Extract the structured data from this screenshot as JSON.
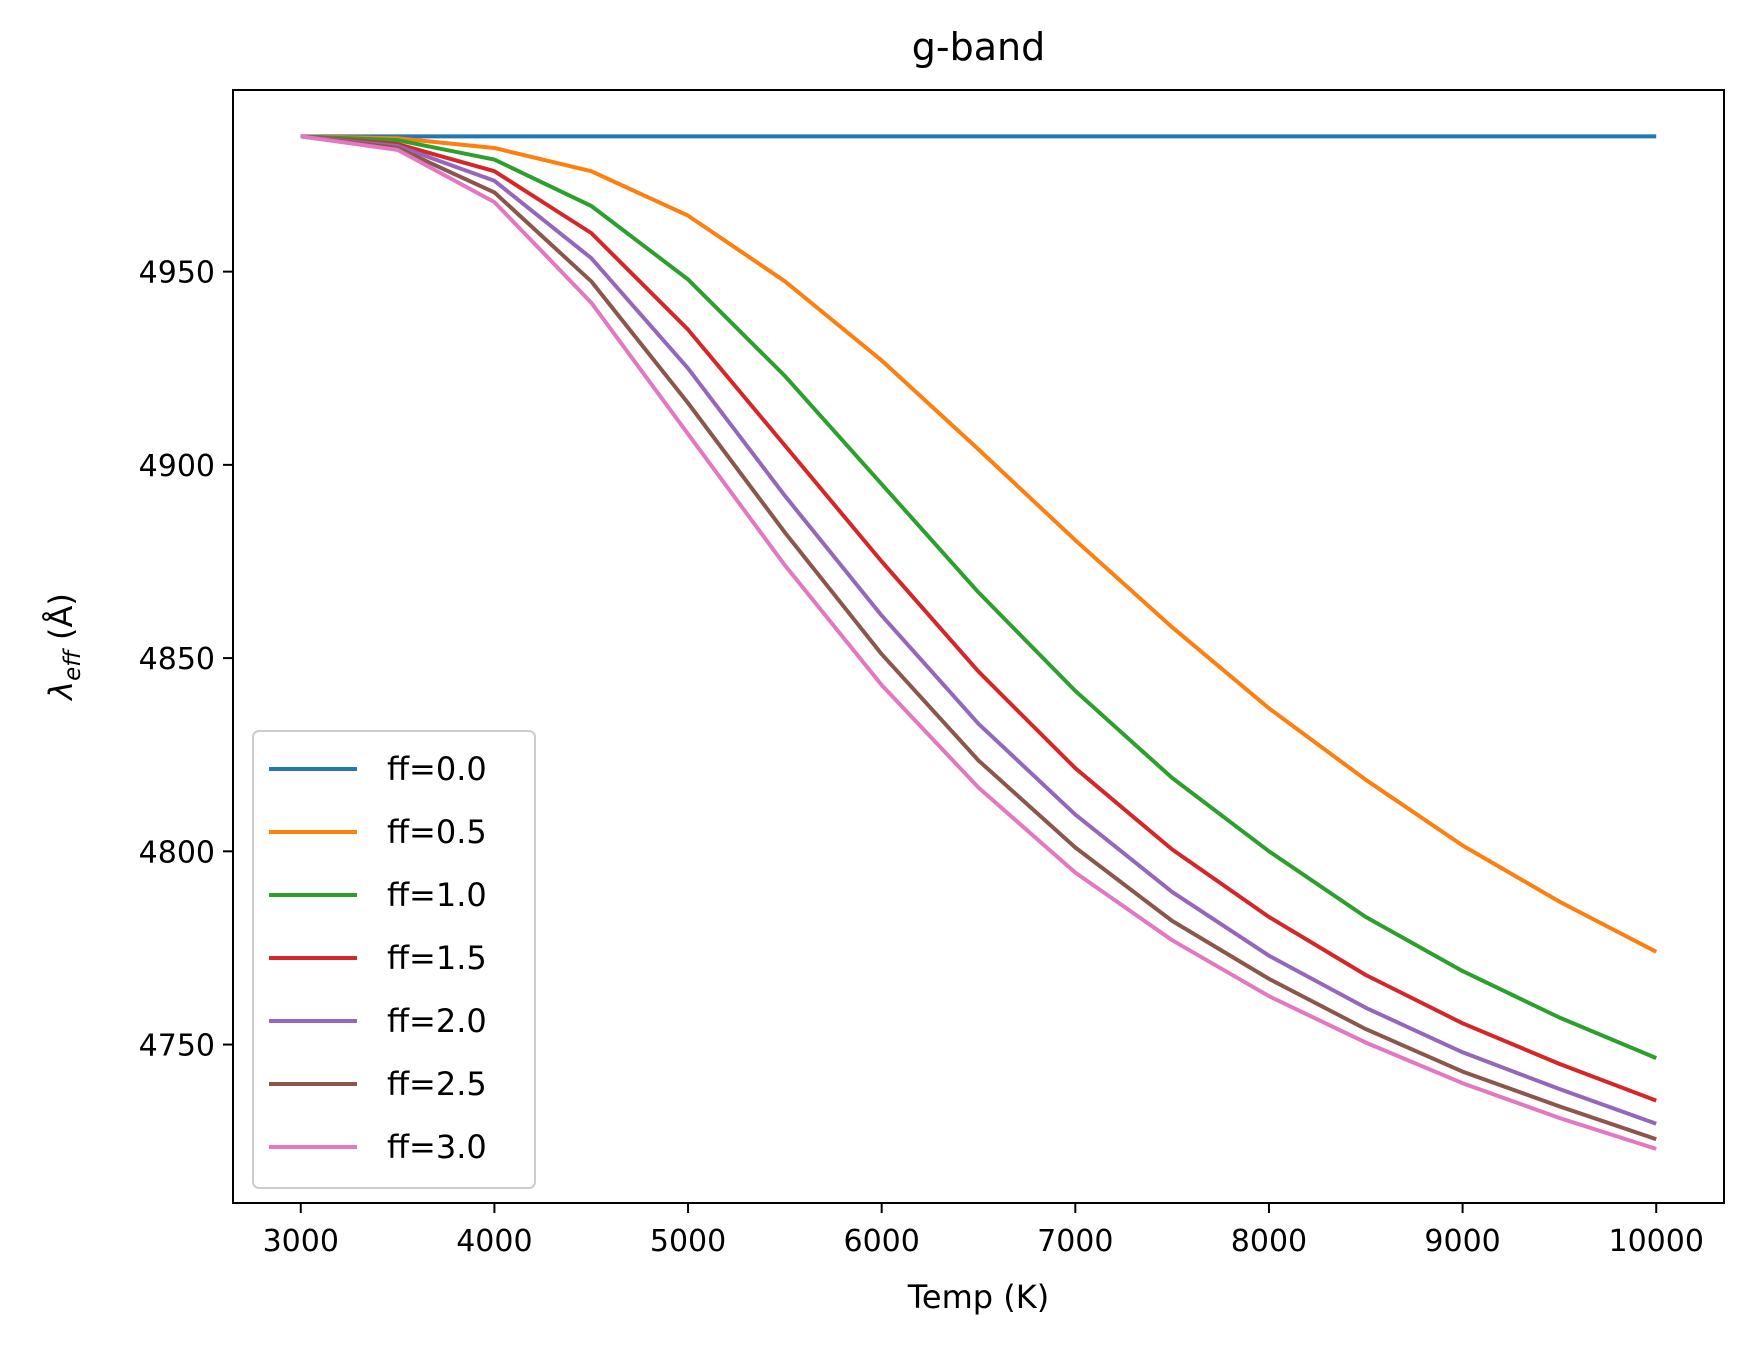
{
  "chart_data": {
    "type": "line",
    "title": "g-band",
    "xlabel": "Temp (K)",
    "ylabel": "λ_eff (Å)",
    "xlim": [
      2650,
      10350
    ],
    "ylim": [
      4709,
      4997
    ],
    "xticks": [
      3000,
      4000,
      5000,
      6000,
      7000,
      8000,
      9000,
      10000
    ],
    "yticks": [
      4750,
      4800,
      4850,
      4900,
      4950
    ],
    "grid": false,
    "legend_position": "lower-left",
    "x": [
      3000,
      3500,
      4000,
      4500,
      5000,
      5500,
      6000,
      6500,
      7000,
      7500,
      8000,
      8500,
      9000,
      9500,
      10000
    ],
    "series": [
      {
        "name": "ff=0.0",
        "color": "#1f77b4",
        "values": [
          4985,
          4985,
          4985,
          4985,
          4985,
          4985,
          4985,
          4985,
          4985,
          4985,
          4985,
          4985,
          4985,
          4985,
          4985
        ]
      },
      {
        "name": "ff=0.5",
        "color": "#ff7f0e",
        "values": [
          4985,
          4984.5,
          4982,
          4976,
          4964.5,
          4947.5,
          4927,
          4904,
          4880.5,
          4858,
          4837,
          4818.5,
          4801.5,
          4787,
          4774
        ]
      },
      {
        "name": "ff=1.0",
        "color": "#2ca02c",
        "values": [
          4985,
          4984,
          4979,
          4967,
          4948,
          4923,
          4895,
          4867,
          4841.5,
          4819,
          4800,
          4783,
          4769,
          4757,
          4746.5
        ]
      },
      {
        "name": "ff=1.5",
        "color": "#d62728",
        "values": [
          4985,
          4983,
          4976,
          4960,
          4935,
          4905,
          4875,
          4846.5,
          4821.5,
          4800.5,
          4783,
          4768,
          4755.5,
          4745,
          4735.5
        ]
      },
      {
        "name": "ff=2.0",
        "color": "#9467bd",
        "values": [
          4985,
          4982.5,
          4973.5,
          4953.5,
          4925,
          4892,
          4861,
          4833,
          4809.5,
          4789.5,
          4773,
          4759.5,
          4748,
          4738.5,
          4729.5
        ]
      },
      {
        "name": "ff=2.5",
        "color": "#8c564b",
        "values": [
          4985,
          4982,
          4970.5,
          4947.5,
          4916,
          4882.5,
          4851,
          4823.5,
          4801,
          4782,
          4767,
          4754,
          4743,
          4734,
          4725.5
        ]
      },
      {
        "name": "ff=3.0",
        "color": "#e377c2",
        "values": [
          4985,
          4981.5,
          4968,
          4942,
          4908,
          4874,
          4843,
          4816.5,
          4794.5,
          4777,
          4762.5,
          4750.5,
          4740,
          4731,
          4723
        ]
      }
    ]
  }
}
